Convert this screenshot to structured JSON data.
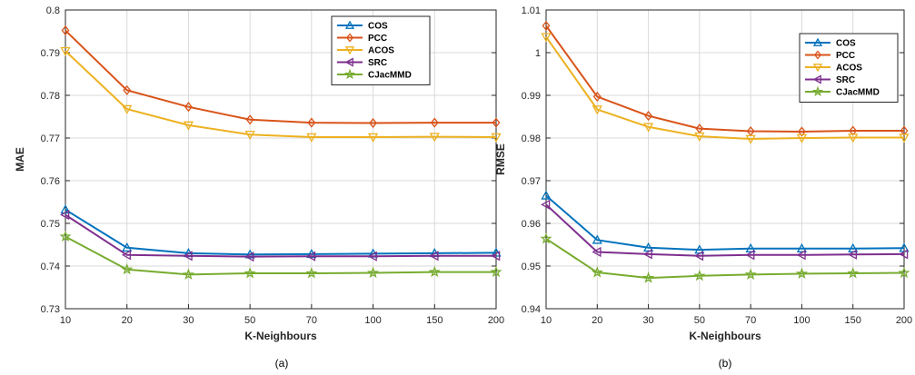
{
  "colors": {
    "COS": "#0072BD",
    "PCC": "#D95319",
    "ACOS": "#EDB120",
    "SRC": "#7E2F8E",
    "CJacMMD": "#77AC30",
    "grid": "#d9d9d9",
    "axis": "#262626"
  },
  "chart_data": [
    {
      "type": "line",
      "caption": "(a)",
      "xlabel": "K-Neighbours",
      "ylabel": "MAE",
      "categories": [
        "10",
        "20",
        "30",
        "50",
        "70",
        "100",
        "150",
        "200"
      ],
      "ylim": [
        0.73,
        0.8
      ],
      "yticks": [
        "0.73",
        "0.74",
        "0.75",
        "0.76",
        "0.77",
        "0.78",
        "0.79",
        "0.8"
      ],
      "grid": true,
      "legend_position": "top-right",
      "series": [
        {
          "name": "COS",
          "marker": "triangle-up",
          "values": [
            0.7532,
            0.7443,
            0.743,
            0.7427,
            0.7428,
            0.7429,
            0.743,
            0.7431
          ]
        },
        {
          "name": "PCC",
          "marker": "diamond",
          "values": [
            0.7952,
            0.7812,
            0.7773,
            0.7743,
            0.7736,
            0.7735,
            0.7736,
            0.7736
          ]
        },
        {
          "name": "ACOS",
          "marker": "triangle-down",
          "values": [
            0.7904,
            0.7768,
            0.773,
            0.7708,
            0.7702,
            0.7702,
            0.7703,
            0.7702
          ]
        },
        {
          "name": "SRC",
          "marker": "triangle-left",
          "values": [
            0.752,
            0.7426,
            0.7424,
            0.7422,
            0.7423,
            0.7423,
            0.7424,
            0.7424
          ]
        },
        {
          "name": "CJacMMD",
          "marker": "star",
          "values": [
            0.7469,
            0.7392,
            0.738,
            0.7383,
            0.7383,
            0.7384,
            0.7386,
            0.7386
          ]
        }
      ]
    },
    {
      "type": "line",
      "caption": "(b)",
      "xlabel": "K-Neighbours",
      "ylabel": "RMSE",
      "categories": [
        "10",
        "20",
        "30",
        "50",
        "70",
        "100",
        "150",
        "200"
      ],
      "ylim": [
        0.94,
        1.01
      ],
      "yticks": [
        "0.94",
        "0.95",
        "0.96",
        "0.97",
        "0.98",
        "0.99",
        "1",
        "1.01"
      ],
      "grid": true,
      "legend_position": "top-right",
      "series": [
        {
          "name": "COS",
          "marker": "triangle-up",
          "values": [
            0.9665,
            0.9561,
            0.9543,
            0.9538,
            0.9541,
            0.9541,
            0.9541,
            0.9542
          ]
        },
        {
          "name": "PCC",
          "marker": "diamond",
          "values": [
            1.0063,
            0.9897,
            0.9852,
            0.9822,
            0.9816,
            0.9815,
            0.9817,
            0.9817
          ]
        },
        {
          "name": "ACOS",
          "marker": "triangle-down",
          "values": [
            1.0037,
            0.9867,
            0.9826,
            0.9804,
            0.9798,
            0.98,
            0.9801,
            0.9801
          ]
        },
        {
          "name": "SRC",
          "marker": "triangle-left",
          "values": [
            0.9644,
            0.9533,
            0.9528,
            0.9524,
            0.9526,
            0.9526,
            0.9527,
            0.9528
          ]
        },
        {
          "name": "CJacMMD",
          "marker": "star",
          "values": [
            0.9564,
            0.9485,
            0.9472,
            0.9477,
            0.948,
            0.9482,
            0.9483,
            0.9484
          ]
        }
      ]
    }
  ]
}
